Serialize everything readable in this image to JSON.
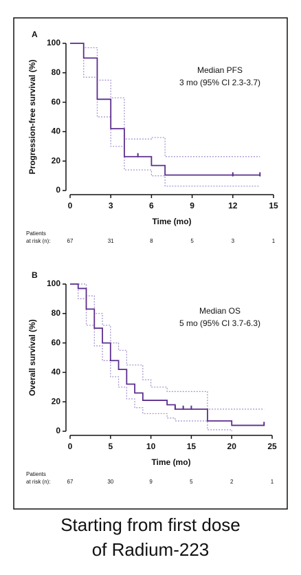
{
  "chart_data": [
    {
      "type": "step",
      "panel": "A",
      "ylabel": "Progression-free survival (%)",
      "xlabel": "Time (mo)",
      "annotations": [
        "Median PFS",
        "3 mo (95% CI 2.3-3.7)"
      ],
      "xlim": [
        0,
        15
      ],
      "xticks": [
        0,
        3,
        6,
        9,
        12,
        15
      ],
      "ylim": [
        0,
        100
      ],
      "yticks": [
        0,
        20,
        40,
        60,
        80,
        100
      ],
      "series": [
        {
          "style": "dotted",
          "color": "#a08ccc",
          "x": [
            0,
            1,
            2,
            3,
            4,
            6,
            7,
            14
          ],
          "values": [
            100,
            97,
            75,
            63,
            35,
            36,
            23,
            23
          ]
        },
        {
          "style": "dotted",
          "color": "#a08ccc",
          "x": [
            0,
            1,
            2,
            3,
            4,
            6,
            7,
            14
          ],
          "values": [
            100,
            77,
            50,
            30,
            14,
            10,
            3,
            3
          ]
        },
        {
          "style": "solid",
          "color": "#5b2d8e",
          "x": [
            0,
            1,
            2,
            3,
            4,
            6,
            7,
            14
          ],
          "values": [
            100,
            90,
            62,
            42,
            23,
            17,
            10.5,
            10.5
          ]
        }
      ],
      "censored": {
        "color": "#5b2d8e",
        "x": [
          5,
          12,
          14
        ],
        "values": [
          24,
          11,
          11
        ]
      },
      "at_risk_label": [
        "Patients",
        "at risk (n):"
      ],
      "at_risk": [
        67,
        31,
        8,
        5,
        3,
        1
      ]
    },
    {
      "type": "step",
      "panel": "B",
      "ylabel": "Overall survival (%)",
      "xlabel": "Time (mo)",
      "annotations": [
        "Median OS",
        "5 mo (95% CI 3.7-6.3)"
      ],
      "xlim": [
        0,
        25
      ],
      "xticks": [
        0,
        5,
        10,
        15,
        20,
        25
      ],
      "ylim": [
        0,
        100
      ],
      "yticks": [
        0,
        20,
        40,
        60,
        80,
        100
      ],
      "series": [
        {
          "style": "dotted",
          "color": "#a08ccc",
          "x": [
            0,
            1,
            2,
            3,
            4,
            5,
            6,
            7,
            9,
            10,
            12,
            17,
            24
          ],
          "values": [
            100,
            100,
            92,
            80,
            72,
            60,
            55,
            45,
            35,
            30,
            27,
            15,
            15
          ]
        },
        {
          "style": "dotted",
          "color": "#a08ccc",
          "x": [
            0,
            1,
            2,
            3,
            4,
            5,
            6,
            7,
            8,
            9,
            12,
            13,
            17,
            20
          ],
          "values": [
            100,
            90,
            72,
            58,
            48,
            37,
            30,
            22,
            16,
            12,
            9,
            7,
            1,
            0
          ]
        },
        {
          "style": "solid",
          "color": "#5b2d8e",
          "x": [
            0,
            1,
            2,
            3,
            4,
            5,
            6,
            7,
            8,
            9,
            12,
            13,
            17,
            20,
            24
          ],
          "values": [
            100,
            97,
            83,
            70,
            60,
            48,
            42,
            32,
            26,
            21,
            18,
            15,
            7,
            4,
            4
          ]
        }
      ],
      "censored": {
        "color": "#5b2d8e",
        "x": [
          13,
          14,
          15,
          24
        ],
        "values": [
          16,
          16,
          16,
          5
        ]
      },
      "at_risk_label": [
        "Patients",
        "at risk (n):"
      ],
      "at_risk": [
        67,
        30,
        9,
        5,
        2,
        1
      ]
    }
  ],
  "caption": [
    "Starting from first dose",
    "of Radium-223"
  ]
}
